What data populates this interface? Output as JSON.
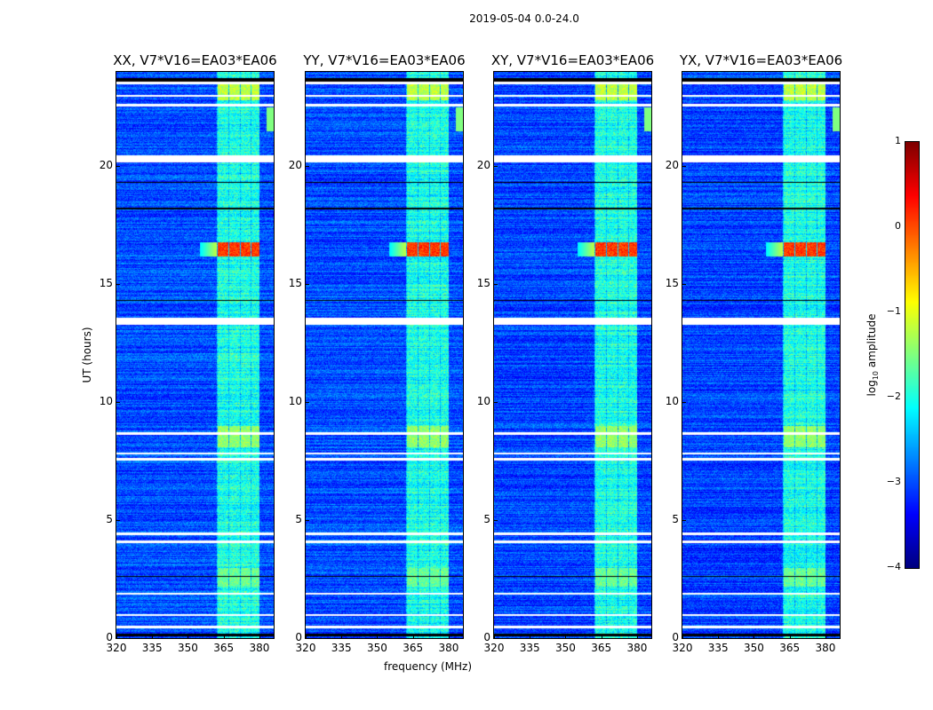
{
  "suptitle": "2019-05-04 0.0-24.0",
  "chart_data": {
    "type": "heatmap",
    "panels": [
      {
        "title": "XX, V7*V16=EA03*EA06"
      },
      {
        "title": "YY, V7*V16=EA03*EA06"
      },
      {
        "title": "XY, V7*V16=EA03*EA06"
      },
      {
        "title": "YX, V7*V16=EA03*EA06"
      }
    ],
    "xlabel": "frequency (MHz)",
    "ylabel": "UT (hours)",
    "xlim": [
      320,
      386
    ],
    "ylim": [
      0,
      24
    ],
    "xticks": [
      "320",
      "335",
      "350",
      "365",
      "380"
    ],
    "xtick_values": [
      320,
      335,
      350,
      365,
      380
    ],
    "yticks": [
      "0",
      "5",
      "10",
      "15",
      "20"
    ],
    "ytick_values": [
      0,
      5,
      10,
      15,
      20
    ],
    "colorbar": {
      "label": "log10 amplitude",
      "label_main": "log",
      "label_sub": "10",
      "label_rest": " amplitude",
      "ticks": [
        "1",
        "0",
        "−1",
        "−2",
        "−3",
        "−4"
      ],
      "tick_values": [
        1,
        0,
        -1,
        -2,
        -3,
        -4
      ],
      "range": [
        -4,
        1
      ],
      "colormap": "jet"
    },
    "background_level": -3.0,
    "band_mhz": [
      362,
      380
    ],
    "band_level": -2.2,
    "subbands_mhz": [
      [
        362.5,
        366.8
      ],
      [
        367.3,
        371.5
      ],
      [
        372,
        376
      ],
      [
        376.5,
        380.5
      ]
    ],
    "bright_events": [
      {
        "hours": [
          22.8,
          23.6
        ],
        "level": -1.2
      },
      {
        "hours": [
          16.2,
          16.8
        ],
        "level": 0.1
      },
      {
        "hours": [
          8.1,
          9.0
        ],
        "level": -1.4
      },
      {
        "hours": [
          2.2,
          3.0
        ],
        "level": -1.6
      }
    ],
    "flagged_hours": [
      [
        0.45,
        0.55
      ],
      [
        0.95,
        1.05
      ],
      [
        1.85,
        1.95
      ],
      [
        4.05,
        4.15
      ],
      [
        4.4,
        4.48
      ],
      [
        7.55,
        7.65
      ],
      [
        7.8,
        7.88
      ],
      [
        8.65,
        8.75
      ],
      [
        13.3,
        13.6
      ],
      [
        20.2,
        20.5
      ],
      [
        22.55,
        22.68
      ],
      [
        22.95,
        23.05
      ],
      [
        23.5,
        23.62
      ]
    ],
    "black_hours": [
      [
        0.1,
        0.2
      ],
      [
        2.6,
        2.65
      ],
      [
        14.3,
        14.36
      ],
      [
        18.2,
        18.25
      ],
      [
        19.3,
        19.35
      ],
      [
        23.62,
        23.75
      ]
    ]
  }
}
